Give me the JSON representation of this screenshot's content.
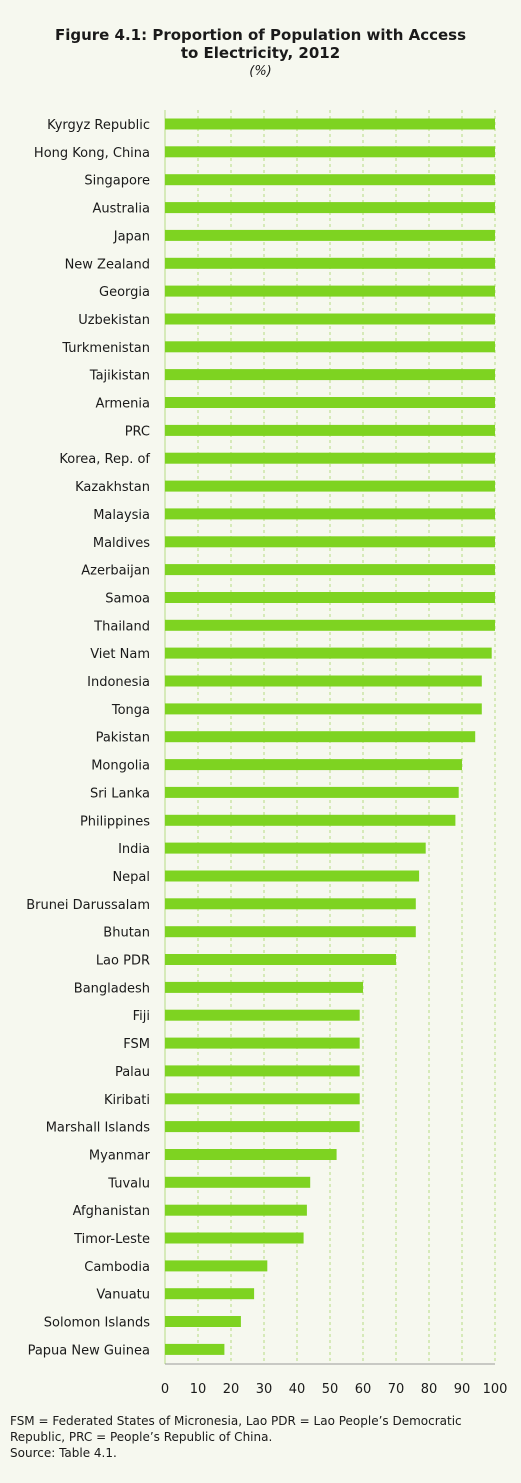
{
  "title_lines": [
    "Figure 4.1:  Proportion of Population with Access",
    "to Electricity, 2012"
  ],
  "unit_label": "(%)",
  "notes": {
    "abbrev_line1": "FSM = Federated States of Micronesia, Lao PDR = Lao People’s Democratic",
    "abbrev_line2": "Republic, PRC = People’s Republic of China.",
    "source": "Source: Table 4.1."
  },
  "colors": {
    "bar": "#7ed321",
    "grid": "#b7dc83",
    "background": "#f6f8ef"
  },
  "chart_data": {
    "type": "bar",
    "orientation": "horizontal",
    "categories": [
      "Kyrgyz Republic",
      "Hong Kong, China",
      "Singapore",
      "Australia",
      "Japan",
      "New Zealand",
      "Georgia",
      "Uzbekistan",
      "Turkmenistan",
      "Tajikistan",
      "Armenia",
      "PRC",
      "Korea, Rep. of",
      "Kazakhstan",
      "Malaysia",
      "Maldives",
      "Azerbaijan",
      "Samoa",
      "Thailand",
      "Viet Nam",
      "Indonesia",
      "Tonga",
      "Pakistan",
      "Mongolia",
      "Sri Lanka",
      "Philippines",
      "India",
      "Nepal",
      "Brunei Darussalam",
      "Bhutan",
      "Lao PDR",
      "Bangladesh",
      "Fiji",
      "FSM",
      "Palau",
      "Kiribati",
      "Marshall Islands",
      "Myanmar",
      "Tuvalu",
      "Afghanistan",
      "Timor-Leste",
      "Cambodia",
      "Vanuatu",
      "Solomon Islands",
      "Papua New Guinea"
    ],
    "values": [
      100,
      100,
      100,
      100,
      100,
      100,
      100,
      100,
      100,
      100,
      100,
      100,
      100,
      100,
      100,
      100,
      100,
      100,
      100,
      99,
      96,
      96,
      94,
      90,
      89,
      88,
      79,
      77,
      76,
      76,
      70,
      60,
      59,
      59,
      59,
      59,
      59,
      52,
      44,
      43,
      42,
      31,
      27,
      23,
      18
    ],
    "xlim": [
      0,
      100
    ],
    "xticks": [
      "0",
      "10",
      "20",
      "30",
      "40",
      "50",
      "60",
      "70",
      "80",
      "90",
      "100"
    ],
    "grid": "vertical dashed"
  }
}
